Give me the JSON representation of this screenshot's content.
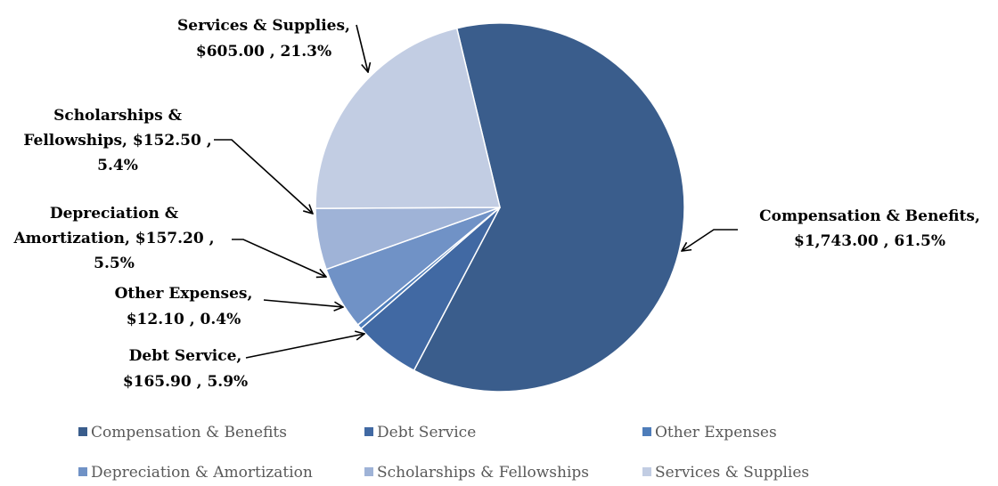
{
  "chart_data": {
    "type": "pie",
    "title": "",
    "slices": [
      {
        "name": "Compensation & Benefits",
        "value": 1743.0,
        "percent": 61.5,
        "color": "#3A5D8C",
        "label_lines": [
          "Compensation & Benefits,",
          "$1,743.00 , 61.5%"
        ]
      },
      {
        "name": "Debt Service",
        "value": 165.9,
        "percent": 5.9,
        "color": "#4169A3",
        "label_lines": [
          "Debt Service,",
          "$165.90 , 5.9%"
        ]
      },
      {
        "name": "Other Expenses",
        "value": 12.1,
        "percent": 0.4,
        "color": "#4E7DBA",
        "label_lines": [
          "Other Expenses,",
          "$12.10 , 0.4%"
        ]
      },
      {
        "name": "Depreciation & Amortization",
        "value": 157.2,
        "percent": 5.5,
        "color": "#7092C6",
        "label_lines": [
          "Depreciation &",
          "Amortization, $157.20 ,",
          "5.5%"
        ]
      },
      {
        "name": "Scholarships & Fellowships",
        "value": 152.5,
        "percent": 5.4,
        "color": "#9FB3D7",
        "label_lines": [
          "Scholarships &",
          "Fellowships, $152.50 ,",
          "5.4%"
        ]
      },
      {
        "name": "Services & Supplies",
        "value": 605.0,
        "percent": 21.3,
        "color": "#C2CDE3",
        "label_lines": [
          "Services & Supplies,",
          "$605.00 , 21.3%"
        ]
      }
    ],
    "legend_position": "bottom"
  }
}
